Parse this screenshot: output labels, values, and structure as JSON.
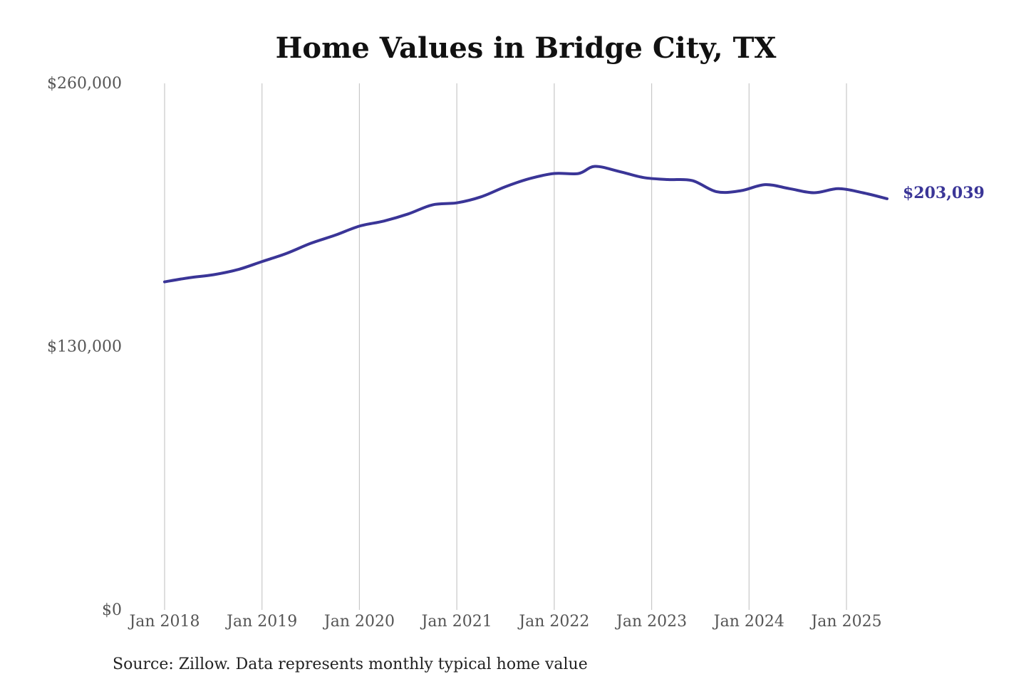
{
  "chart_data": {
    "type": "line",
    "title": "Home Values in Bridge City, TX",
    "source": "Source: Zillow. Data represents monthly typical home value",
    "ylim": [
      0,
      260000
    ],
    "yticks": [
      {
        "value": 0,
        "label": "$0"
      },
      {
        "value": 130000,
        "label": "$130,000"
      },
      {
        "value": 260000,
        "label": "$260,000"
      }
    ],
    "xticks": [
      {
        "date": "2018-01",
        "label": "Jan 2018"
      },
      {
        "date": "2019-01",
        "label": "Jan 2019"
      },
      {
        "date": "2020-01",
        "label": "Jan 2020"
      },
      {
        "date": "2021-01",
        "label": "Jan 2021"
      },
      {
        "date": "2022-01",
        "label": "Jan 2022"
      },
      {
        "date": "2023-01",
        "label": "Jan 2023"
      },
      {
        "date": "2024-01",
        "label": "Jan 2024"
      },
      {
        "date": "2025-01",
        "label": "Jan 2025"
      }
    ],
    "xrange": [
      "2018-01",
      "2025-06"
    ],
    "grid": "vertical",
    "line_color": "#3a3597",
    "end_label": "$203,039",
    "series": [
      {
        "x": [
          "2018-01",
          "2018-04",
          "2018-07",
          "2018-10",
          "2019-01",
          "2019-04",
          "2019-07",
          "2019-10",
          "2020-01",
          "2020-04",
          "2020-07",
          "2020-10",
          "2021-01",
          "2021-04",
          "2021-07",
          "2021-10",
          "2022-01",
          "2022-04",
          "2022-06",
          "2022-09",
          "2022-12",
          "2023-03",
          "2023-06",
          "2023-09",
          "2023-12",
          "2024-03",
          "2024-06",
          "2024-09",
          "2024-12",
          "2025-03",
          "2025-06"
        ],
        "values": [
          162000,
          164000,
          165500,
          168000,
          172000,
          176000,
          181000,
          185000,
          189500,
          192000,
          195500,
          200000,
          201000,
          204000,
          209000,
          213000,
          215500,
          215500,
          219000,
          216500,
          213500,
          212500,
          212000,
          206500,
          207000,
          210000,
          208000,
          206000,
          208000,
          206000,
          203039
        ]
      }
    ]
  }
}
